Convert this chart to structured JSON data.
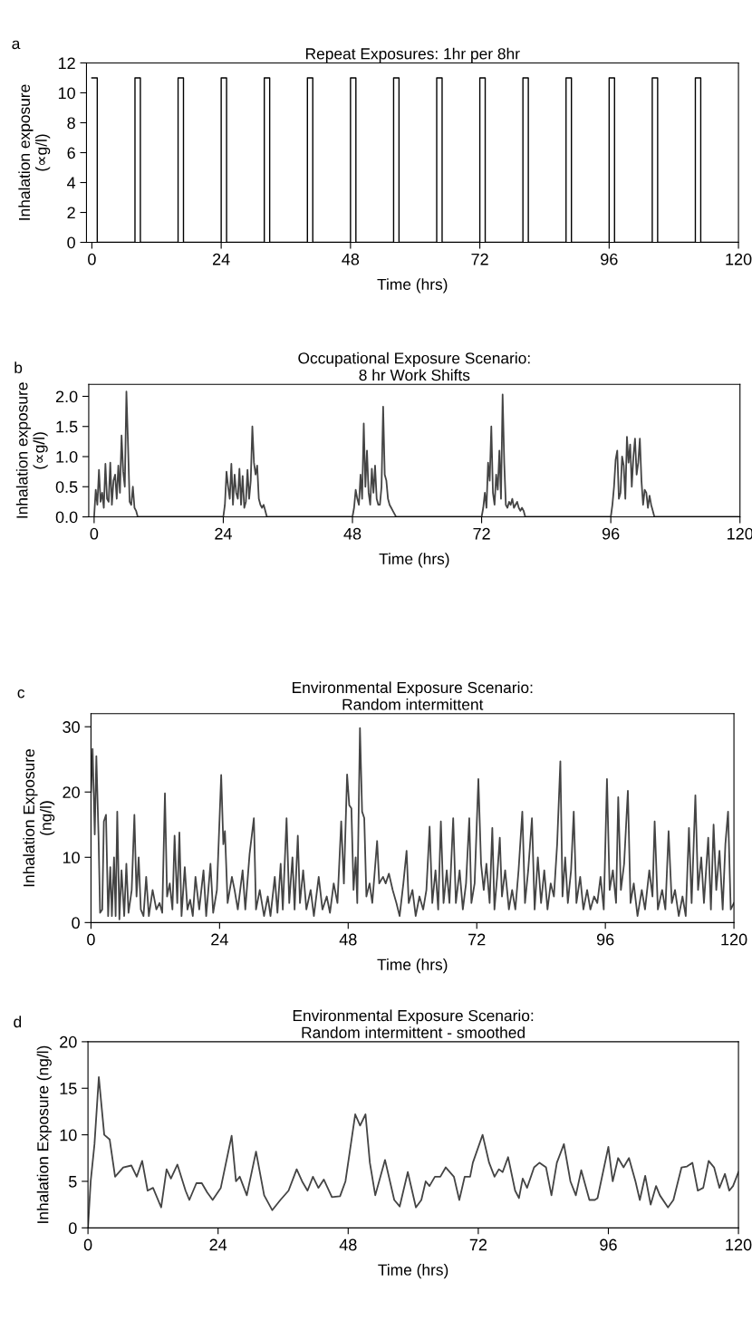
{
  "chart_data": [
    {
      "type": "step",
      "title": "Repeat Exposures: 1hr per 8hr",
      "xlabel": "Time (hrs)",
      "ylabel": "Inhalation exposure\n(∝g/l)",
      "annotations": [
        "a"
      ],
      "xlim": [
        -1,
        120
      ],
      "ylim": [
        0,
        12
      ],
      "xticks": [
        0,
        24,
        48,
        72,
        96,
        120
      ],
      "yticks": [
        0,
        2,
        4,
        6,
        8,
        10,
        12
      ],
      "series": [
        {
          "color": "#000000",
          "x": [
            0,
            1,
            8,
            9,
            16,
            17,
            24,
            25,
            32,
            33,
            40,
            41,
            48,
            49,
            56,
            57,
            64,
            65,
            72,
            73,
            80,
            81,
            88,
            89,
            96,
            97,
            104,
            105,
            112,
            113,
            120
          ],
          "values": [
            11,
            0,
            11,
            0,
            11,
            0,
            11,
            0,
            11,
            0,
            11,
            0,
            11,
            0,
            11,
            0,
            11,
            0,
            11,
            0,
            11,
            0,
            11,
            0,
            11,
            0,
            11,
            0,
            11,
            0,
            0
          ]
        }
      ]
    },
    {
      "type": "line",
      "title": "Occupational Exposure Scenario:\n8 hr Work Shifts",
      "xlabel": "Time (hrs)",
      "ylabel": "Inhalation exposure\n(∝g/l)",
      "annotations": [
        "b"
      ],
      "xlim": [
        -1,
        120
      ],
      "ylim": [
        0,
        2.2
      ],
      "xticks": [
        0,
        24,
        48,
        72,
        96,
        120
      ],
      "yticks": [
        {
          "value": 0,
          "label": "0.0"
        },
        {
          "value": 0.5,
          "label": "0.5"
        },
        {
          "value": 1,
          "label": "1.0"
        },
        {
          "value": 1.5,
          "label": "1.5"
        },
        {
          "value": 2,
          "label": "2.0"
        }
      ],
      "series": [
        {
          "color": "#444444",
          "x": [
            0,
            0.3,
            0.6,
            0.9,
            1.2,
            1.5,
            1.8,
            2.1,
            2.4,
            2.7,
            3,
            3.3,
            3.6,
            3.9,
            4.2,
            4.5,
            4.8,
            5.1,
            5.4,
            5.7,
            6,
            6.3,
            6.6,
            6.9,
            7.2,
            7.5,
            7.8,
            8.1,
            24,
            24.3,
            24.6,
            24.9,
            25.2,
            25.5,
            25.8,
            26.1,
            26.4,
            26.7,
            27,
            27.3,
            27.6,
            27.9,
            28.2,
            28.5,
            28.8,
            29.1,
            29.4,
            29.7,
            30,
            30.3,
            30.6,
            30.9,
            31.2,
            31.5,
            31.8,
            32.1,
            48,
            48.3,
            48.6,
            48.9,
            49.2,
            49.5,
            49.8,
            50.1,
            50.4,
            50.7,
            51,
            51.3,
            51.6,
            51.9,
            52.2,
            52.5,
            52.8,
            53.1,
            53.4,
            53.7,
            54,
            54.3,
            54.6,
            54.9,
            55.2,
            55.5,
            55.8,
            56.1,
            72,
            72.3,
            72.6,
            72.9,
            73.2,
            73.5,
            73.8,
            74.1,
            74.4,
            74.7,
            75,
            75.3,
            75.6,
            75.9,
            76.2,
            76.5,
            76.8,
            77.1,
            77.4,
            77.7,
            78,
            78.3,
            78.6,
            78.9,
            79.2,
            79.5,
            79.8,
            80.1,
            96,
            96.3,
            96.6,
            96.9,
            97.2,
            97.5,
            97.8,
            98.1,
            98.4,
            98.7,
            99,
            99.3,
            99.6,
            99.9,
            100.2,
            100.5,
            100.8,
            101.1,
            101.4,
            101.7,
            102,
            102.3,
            102.6,
            102.9,
            103.2,
            103.5,
            103.8,
            104.1,
            120
          ],
          "values": [
            0,
            0.45,
            0.2,
            0.78,
            0.25,
            0.4,
            0.15,
            0.88,
            0.3,
            0.25,
            0.9,
            0.2,
            0.6,
            0.7,
            0.3,
            0.85,
            0.4,
            1.35,
            0.75,
            0.5,
            2.08,
            1.2,
            0.25,
            0.2,
            0.5,
            0.15,
            0.1,
            0,
            0,
            0.2,
            0.75,
            0.5,
            0.3,
            0.88,
            0.2,
            0.7,
            0.4,
            0.3,
            0.8,
            0.2,
            0.68,
            0.15,
            0.25,
            0.78,
            0.3,
            0.6,
            1.5,
            0.9,
            0.7,
            0.85,
            0.3,
            0.2,
            0.15,
            0.2,
            0.1,
            0,
            0,
            0.15,
            0.45,
            0.3,
            0.2,
            0.7,
            0.3,
            1.55,
            0.5,
            1.1,
            0.4,
            0.2,
            0.8,
            0.4,
            0.85,
            0.3,
            0.2,
            0.2,
            0.5,
            1.83,
            0.7,
            0.6,
            0.3,
            0.2,
            0.15,
            0.1,
            0.05,
            0,
            0,
            0.15,
            0.4,
            0.15,
            0.9,
            0.6,
            1.5,
            0.4,
            0.2,
            0.7,
            0.45,
            1.1,
            0.3,
            2.03,
            0.9,
            0.2,
            0.15,
            0.25,
            0.2,
            0.3,
            0.15,
            0.2,
            0.25,
            0.15,
            0.1,
            0.15,
            0.1,
            0,
            0,
            0.2,
            0.5,
            0.95,
            1.1,
            0.3,
            0.4,
            1.0,
            0.85,
            0.3,
            1.33,
            0.9,
            1.2,
            0.5,
            1.0,
            1.3,
            0.7,
            0.9,
            1.3,
            0.6,
            0.2,
            0.45,
            0.4,
            0.15,
            0.35,
            0.2,
            0.1,
            0,
            0
          ]
        }
      ]
    },
    {
      "type": "line",
      "title": "Environmental Exposure Scenario:\nRandom intermittent",
      "xlabel": "Time (hrs)",
      "ylabel": "Inhalation Exposure\n(ng/l)",
      "annotations": [
        "c"
      ],
      "xlim": [
        0,
        120
      ],
      "ylim": [
        0,
        32
      ],
      "xticks": [
        0,
        24,
        48,
        72,
        96,
        120
      ],
      "yticks": [
        0,
        10,
        20,
        30
      ],
      "series": [
        {
          "color": "#444444",
          "x": [
            0,
            0.3,
            0.7,
            1.0,
            1.4,
            1.7,
            2.1,
            2.4,
            2.8,
            3.2,
            3.6,
            3.9,
            4.3,
            4.6,
            4.9,
            5.3,
            5.7,
            6.2,
            6.6,
            7.0,
            7.6,
            8.1,
            8.5,
            8.9,
            9.3,
            9.8,
            10.3,
            10.8,
            11.5,
            12.2,
            12.8,
            13.3,
            13.8,
            14.2,
            14.7,
            15.2,
            15.6,
            16.1,
            16.5,
            16.9,
            17.5,
            18.0,
            18.5,
            19.0,
            19.5,
            20.2,
            21.0,
            21.5,
            22.3,
            22.8,
            23.5,
            24.3,
            24.7,
            25.0,
            25.5,
            26.3,
            26.8,
            27.4,
            28.3,
            28.8,
            29.6,
            30.4,
            30.8,
            31.5,
            32.3,
            33.0,
            33.5,
            34.3,
            34.8,
            35.4,
            35.8,
            36.5,
            37.0,
            37.6,
            38.0,
            38.6,
            39.0,
            39.6,
            40.2,
            41.0,
            41.6,
            42.5,
            43.2,
            44.0,
            44.6,
            45.3,
            46.0,
            46.7,
            47.2,
            47.8,
            48.2,
            48.6,
            49.0,
            49.4,
            49.7,
            50.2,
            50.6,
            51.0,
            51.4,
            52.0,
            52.5,
            53.4,
            53.8,
            54.5,
            55.0,
            55.6,
            56.3,
            57.0,
            57.6,
            58.3,
            58.9,
            59.3,
            60.0,
            60.6,
            61.3,
            62.0,
            62.6,
            63.2,
            63.7,
            64.3,
            64.8,
            65.3,
            65.8,
            66.4,
            66.9,
            67.6,
            68.1,
            68.8,
            69.4,
            70.0,
            70.6,
            71.0,
            71.6,
            72.3,
            72.8,
            73.3,
            73.8,
            74.4,
            74.9,
            75.3,
            75.8,
            76.3,
            76.7,
            77.3,
            78.0,
            78.6,
            79.2,
            79.8,
            80.5,
            81.0,
            81.6,
            82.3,
            82.8,
            83.4,
            84.0,
            84.6,
            85.2,
            85.8,
            86.4,
            87.0,
            87.6,
            88.0,
            88.5,
            89.0,
            89.6,
            90.1,
            90.6,
            91.3,
            91.9,
            92.6,
            93.2,
            93.9,
            94.5,
            95.1,
            95.7,
            96.3,
            96.8,
            97.4,
            98.0,
            98.4,
            98.9,
            99.5,
            100.2,
            100.7,
            101.3,
            102,
            102.8,
            103.4,
            104.2,
            104.8,
            105.2,
            105.8,
            106.6,
            107.2,
            107.8,
            108.4,
            109,
            109.7,
            110.4,
            111.0,
            111.6,
            112.1,
            112.8,
            113.3,
            113.9,
            114.4,
            115.2,
            115.7,
            116.2,
            116.7,
            117.3,
            117.9,
            118.4,
            118.9,
            119.4,
            120
          ],
          "values": [
            20,
            26.6,
            13.5,
            25.5,
            13.5,
            1.5,
            2,
            15.5,
            16.5,
            1,
            8.5,
            1,
            10,
            1,
            17,
            0.5,
            8,
            1,
            9,
            1.5,
            5,
            16.5,
            4,
            10,
            2,
            1,
            7,
            1,
            5,
            2,
            3,
            1.5,
            19.8,
            4,
            6,
            2,
            13.3,
            3,
            13.8,
            1,
            8.5,
            2,
            3.5,
            1,
            7,
            2,
            8,
            1,
            9,
            1.5,
            5,
            22.6,
            12,
            14,
            3,
            7,
            5,
            2,
            8,
            2,
            10.5,
            16,
            2,
            5,
            1,
            4,
            1,
            7,
            1.5,
            9,
            2,
            16,
            3,
            10,
            2,
            13.3,
            3,
            8,
            2,
            5,
            1,
            7,
            2,
            4,
            1.5,
            6,
            3,
            15.5,
            6,
            22.7,
            18,
            17.5,
            5,
            10,
            3,
            29.8,
            17,
            16,
            4,
            6,
            3,
            12.5,
            6,
            7,
            6,
            7.5,
            5,
            3,
            1,
            6,
            11,
            3,
            5,
            1,
            4,
            2,
            5,
            14.7,
            3,
            8,
            2,
            15.5,
            3,
            8,
            3,
            16,
            3,
            8,
            2,
            6,
            16,
            3,
            6,
            22,
            9,
            5,
            9,
            3,
            14.5,
            2,
            7,
            13,
            4,
            8,
            2,
            5,
            2,
            8,
            17,
            3,
            8,
            16,
            2,
            10,
            3,
            8,
            2,
            6,
            4,
            12,
            24.7,
            4,
            10,
            3,
            8,
            17,
            3,
            7,
            2,
            5,
            2,
            4,
            3,
            7,
            2,
            22,
            5,
            8,
            3,
            19.2,
            5,
            9,
            20.2,
            3,
            6,
            1,
            5,
            2,
            8,
            4,
            15.5,
            2,
            5,
            2,
            14,
            3,
            5,
            1,
            4,
            1,
            14.5,
            3,
            19.5,
            5,
            10,
            3,
            13,
            2,
            15,
            5,
            11,
            2,
            12,
            17,
            2,
            3
          ]
        }
      ]
    },
    {
      "type": "line",
      "title": "Environmental Exposure Scenario:\nRandom intermittent - smoothed",
      "xlabel": "Time (hrs)",
      "ylabel": "Inhalation Exposure (ng/l)",
      "annotations": [
        "d"
      ],
      "xlim": [
        0,
        120
      ],
      "ylim": [
        0,
        20
      ],
      "xticks": [
        0,
        24,
        48,
        72,
        96,
        120
      ],
      "yticks": [
        0,
        5,
        10,
        15,
        20
      ],
      "series": [
        {
          "color": "#444444",
          "x": [
            0,
            0.5,
            1.2,
            2,
            3,
            4,
            5,
            6.5,
            8,
            9,
            10,
            11,
            12,
            13.5,
            14.5,
            15.3,
            16.5,
            18,
            18.7,
            20,
            21,
            22,
            23,
            24.5,
            26.5,
            27.3,
            28,
            29.3,
            31,
            32.5,
            34,
            35.5,
            37,
            38.5,
            39.5,
            40.5,
            41.5,
            42.5,
            43.5,
            45,
            46.5,
            47.5,
            49.3,
            50.2,
            51.2,
            52,
            53,
            54.8,
            56.5,
            57.5,
            59,
            60.5,
            61.5,
            62.3,
            63,
            64,
            65,
            66,
            67.5,
            68.5,
            69.5,
            70.5,
            71,
            72.8,
            74,
            75,
            75.8,
            76.5,
            77.5,
            78.8,
            79.5,
            80.2,
            81,
            82.3,
            83.3,
            84.5,
            85.5,
            86.5,
            87.8,
            89,
            90,
            91,
            92.5,
            93.5,
            94,
            96,
            96.8,
            97.8,
            98.8,
            99.8,
            101,
            101.8,
            102.8,
            103.8,
            104.8,
            105.5,
            107,
            108,
            109.5,
            110.5,
            111.5,
            112.5,
            113.5,
            114.5,
            115.5,
            116.5,
            117.5,
            118.3,
            119,
            120
          ],
          "values": [
            0,
            5,
            9,
            16.2,
            10,
            9.5,
            5.5,
            6.5,
            6.7,
            5.5,
            7.2,
            4,
            4.3,
            2.2,
            6.3,
            5.3,
            6.8,
            4,
            3,
            4.8,
            4.8,
            3.8,
            3,
            4.3,
            9.9,
            5,
            5.5,
            3.5,
            8.2,
            3.5,
            1.9,
            3,
            4,
            6.3,
            5,
            4,
            5.5,
            4.3,
            5.2,
            3.3,
            3.4,
            5,
            12.2,
            11,
            12.2,
            7,
            3.5,
            7.3,
            3,
            2.3,
            6,
            2.2,
            3,
            5,
            4.5,
            5.5,
            5.5,
            6.5,
            5.5,
            3,
            5.5,
            5.5,
            7,
            10,
            7,
            5.5,
            6.3,
            6,
            7.6,
            4,
            3.2,
            5.3,
            4.3,
            6.5,
            7,
            6.5,
            3.5,
            7,
            9,
            5,
            3.5,
            6.2,
            3,
            3,
            3.2,
            8.7,
            5,
            7.5,
            6.5,
            7.5,
            5,
            3,
            5.6,
            2.5,
            4.5,
            3.5,
            2.2,
            3,
            6.5,
            6.6,
            7,
            4,
            4.3,
            7.2,
            6.5,
            4.3,
            5.8,
            4,
            4.5,
            6
          ]
        }
      ]
    }
  ]
}
